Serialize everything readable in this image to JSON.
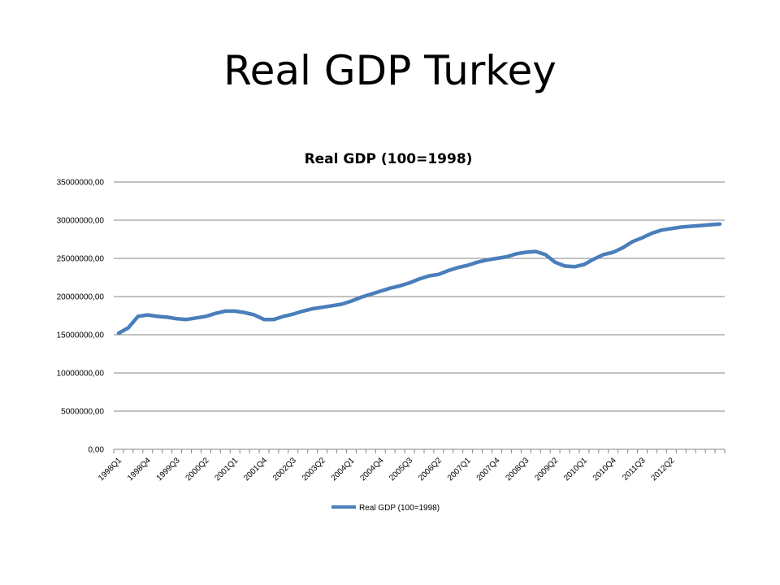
{
  "slide": {
    "title": "Real GDP Turkey"
  },
  "chart_data": {
    "type": "line",
    "title": "Real GDP (100=1998)",
    "xlabel": "",
    "ylabel": "",
    "ylim": [
      0,
      35000000
    ],
    "yticks": [
      0,
      5000000,
      10000000,
      15000000,
      20000000,
      25000000,
      30000000,
      35000000
    ],
    "ytick_labels": [
      "0,00",
      "5000000,00",
      "10000000,00",
      "15000000,00",
      "20000000,00",
      "25000000,00",
      "30000000,00",
      "35000000,00"
    ],
    "x": [
      "1998Q1",
      "1998Q2",
      "1998Q3",
      "1998Q4",
      "1999Q1",
      "1999Q2",
      "1999Q3",
      "1999Q4",
      "2000Q1",
      "2000Q2",
      "2000Q3",
      "2000Q4",
      "2001Q1",
      "2001Q2",
      "2001Q3",
      "2001Q4",
      "2002Q1",
      "2002Q2",
      "2002Q3",
      "2002Q4",
      "2003Q1",
      "2003Q2",
      "2003Q3",
      "2003Q4",
      "2004Q1",
      "2004Q2",
      "2004Q3",
      "2004Q4",
      "2005Q1",
      "2005Q2",
      "2005Q3",
      "2005Q4",
      "2006Q1",
      "2006Q2",
      "2006Q3",
      "2006Q4",
      "2007Q1",
      "2007Q2",
      "2007Q3",
      "2007Q4",
      "2008Q1",
      "2008Q2",
      "2008Q3",
      "2008Q4",
      "2009Q1",
      "2009Q2",
      "2009Q3",
      "2009Q4",
      "2010Q1",
      "2010Q2",
      "2010Q3",
      "2010Q4",
      "2011Q1",
      "2011Q2",
      "2011Q3",
      "2011Q4",
      "2012Q1",
      "2012Q2",
      "2012Q3",
      "2012Q4",
      "2013Q1",
      "2013Q2",
      "2013Q3"
    ],
    "x_tick_labels_shown": [
      "1998Q1",
      "1998Q4",
      "1999Q3",
      "2000Q2",
      "2001Q1",
      "2001Q4",
      "2002Q3",
      "2003Q2",
      "2004Q1",
      "2004Q4",
      "2005Q3",
      "2006Q2",
      "2007Q1",
      "2007Q4",
      "2008Q3",
      "2009Q2",
      "2010Q1",
      "2010Q4",
      "2011Q3",
      "2012Q2"
    ],
    "series": [
      {
        "name": "Real GDP (100=1998)",
        "color": "#4A7EBB",
        "values": [
          15200000,
          15900000,
          17400000,
          17600000,
          17400000,
          17300000,
          17100000,
          17000000,
          17200000,
          17400000,
          17800000,
          18100000,
          18100000,
          17900000,
          17600000,
          17000000,
          17000000,
          17400000,
          17700000,
          18100000,
          18400000,
          18600000,
          18800000,
          19000000,
          19400000,
          19900000,
          20300000,
          20700000,
          21100000,
          21400000,
          21800000,
          22300000,
          22700000,
          22900000,
          23400000,
          23800000,
          24100000,
          24500000,
          24800000,
          25000000,
          25200000,
          25600000,
          25800000,
          25900000,
          25500000,
          24500000,
          24000000,
          23900000,
          24200000,
          24900000,
          25500000,
          25800000,
          26400000,
          27200000,
          27700000,
          28300000,
          28700000,
          28900000,
          29100000,
          29200000,
          29300000,
          29400000,
          29500000
        ]
      }
    ],
    "grid": true,
    "legend": "bottom"
  }
}
